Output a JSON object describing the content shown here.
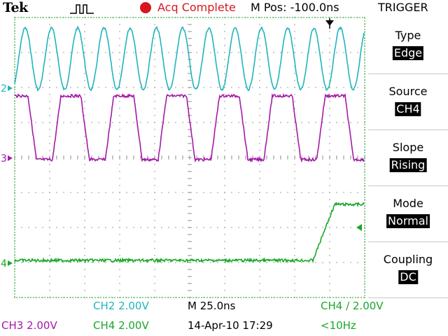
{
  "header": {
    "brand": "Tek",
    "acq_status": "Acq Complete",
    "mpos": "M Pos: -100.0ns",
    "menu_title": "TRIGGER"
  },
  "trigger_menu": [
    {
      "label": "Type",
      "value": "Edge"
    },
    {
      "label": "Source",
      "value": "CH4"
    },
    {
      "label": "Slope",
      "value": "Rising"
    },
    {
      "label": "Mode",
      "value": "Normal"
    },
    {
      "label": "Coupling",
      "value": "DC"
    }
  ],
  "channel_markers": {
    "ch2": "2",
    "ch3": "3",
    "ch4": "4"
  },
  "status": {
    "ch2_scale": "CH2  2.00V",
    "ch3_scale": "CH3  2.00V",
    "ch4_scale": "CH4  2.00V",
    "timebase": "M 25.0ns",
    "trigger_info": "CH4 ∕ 2.00V",
    "datetime": "14-Apr-10 17:29",
    "frequency": "<10Hz"
  },
  "colors": {
    "ch2": "#20b4bc",
    "ch3": "#a41aa8",
    "ch4": "#18a82a",
    "acq_indicator": "#d6181e"
  }
}
